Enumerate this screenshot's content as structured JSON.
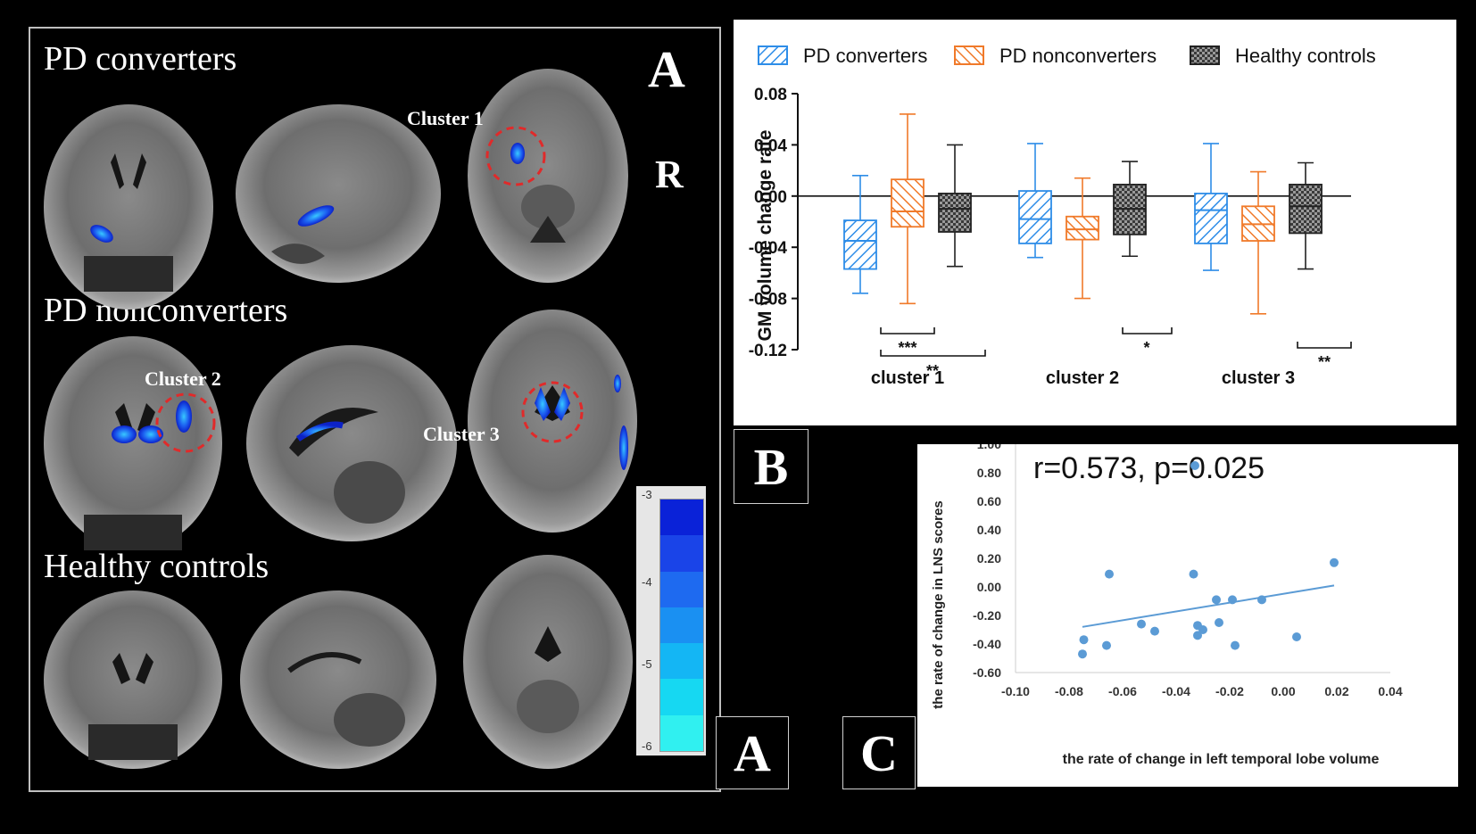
{
  "panelA": {
    "letter": "A",
    "orientation": "R",
    "rows": [
      {
        "title": "PD converters"
      },
      {
        "title": "PD nonconverters"
      },
      {
        "title": "Healthy controls"
      }
    ],
    "clusters": [
      "Cluster 1",
      "Cluster 2",
      "Cluster 3"
    ],
    "colorbar_ticks": [
      "-3",
      "-4",
      "-5",
      "-6"
    ],
    "colorbar_colors": [
      "#0a22d8",
      "#1a44e8",
      "#1e6af0",
      "#1a90f2",
      "#14b6f4",
      "#16d8f2",
      "#30f0f0"
    ],
    "bottom_letter": "A"
  },
  "panelB": {
    "letter": "B",
    "legend": [
      {
        "label": "PD converters",
        "color": "#2e8de8"
      },
      {
        "label": "PD nonconverters",
        "color": "#f07a2a"
      },
      {
        "label": "Healthy controls",
        "color": "#333333"
      }
    ],
    "significance": [
      {
        "label": "***"
      },
      {
        "label": "**"
      },
      {
        "label": "*"
      },
      {
        "label": "**"
      }
    ]
  },
  "chart_data": [
    {
      "type": "box",
      "title": "",
      "ylabel": "GM volume change rate",
      "xlabel": "",
      "ylim": [
        -0.12,
        0.08
      ],
      "yticks": [
        "0.08",
        "0.04",
        "0.00",
        "-0.04",
        "-0.08",
        "-0.12"
      ],
      "categories": [
        "cluster 1",
        "cluster 2",
        "cluster 3"
      ],
      "series": [
        {
          "name": "PD converters",
          "boxes": [
            {
              "min": -0.076,
              "q1": -0.057,
              "median": -0.035,
              "q3": -0.019,
              "max": 0.016
            },
            {
              "min": -0.048,
              "q1": -0.037,
              "median": -0.018,
              "q3": 0.004,
              "max": 0.041
            },
            {
              "min": -0.058,
              "q1": -0.037,
              "median": -0.011,
              "q3": 0.002,
              "max": 0.041
            }
          ]
        },
        {
          "name": "PD nonconverters",
          "boxes": [
            {
              "min": -0.084,
              "q1": -0.024,
              "median": -0.012,
              "q3": 0.013,
              "max": 0.064
            },
            {
              "min": -0.08,
              "q1": -0.034,
              "median": -0.026,
              "q3": -0.016,
              "max": 0.014
            },
            {
              "min": -0.092,
              "q1": -0.035,
              "median": -0.022,
              "q3": -0.008,
              "max": 0.019
            }
          ]
        },
        {
          "name": "Healthy controls",
          "boxes": [
            {
              "min": -0.055,
              "q1": -0.028,
              "median": -0.01,
              "q3": 0.002,
              "max": 0.04
            },
            {
              "min": -0.047,
              "q1": -0.03,
              "median": -0.01,
              "q3": 0.009,
              "max": 0.027
            },
            {
              "min": -0.057,
              "q1": -0.029,
              "median": -0.008,
              "q3": 0.009,
              "max": 0.026
            }
          ]
        }
      ]
    },
    {
      "type": "scatter",
      "annotation": "r=0.573, p=0.025",
      "xlabel": "the rate of change in left temporal lobe volume",
      "ylabel": "the rate of change in LNS scores",
      "xlim": [
        -0.1,
        0.04
      ],
      "ylim": [
        -0.6,
        1.0
      ],
      "xticks": [
        "-0.10",
        "-0.08",
        "-0.06",
        "-0.04",
        "-0.02",
        "0.00",
        "0.02",
        "0.04"
      ],
      "yticks": [
        "1.00",
        "0.80",
        "0.60",
        "0.40",
        "0.20",
        "0.00",
        "-0.20",
        "-0.40",
        "-0.60"
      ],
      "points": [
        {
          "x": -0.075,
          "y": -0.47
        },
        {
          "x": -0.0745,
          "y": -0.37
        },
        {
          "x": -0.066,
          "y": -0.41
        },
        {
          "x": -0.065,
          "y": 0.09
        },
        {
          "x": -0.053,
          "y": -0.26
        },
        {
          "x": -0.048,
          "y": -0.31
        },
        {
          "x": -0.033,
          "y": 0.85
        },
        {
          "x": -0.0335,
          "y": 0.09
        },
        {
          "x": -0.032,
          "y": -0.27
        },
        {
          "x": -0.032,
          "y": -0.34
        },
        {
          "x": -0.03,
          "y": -0.3
        },
        {
          "x": -0.025,
          "y": -0.09
        },
        {
          "x": -0.024,
          "y": -0.25
        },
        {
          "x": -0.019,
          "y": -0.09
        },
        {
          "x": -0.018,
          "y": -0.41
        },
        {
          "x": -0.008,
          "y": -0.09
        },
        {
          "x": 0.005,
          "y": -0.35
        },
        {
          "x": 0.019,
          "y": 0.17
        }
      ],
      "fit_line": {
        "x": [
          -0.075,
          0.019
        ],
        "y": [
          -0.28,
          0.01
        ]
      }
    }
  ],
  "panelC": {
    "letter": "C"
  }
}
